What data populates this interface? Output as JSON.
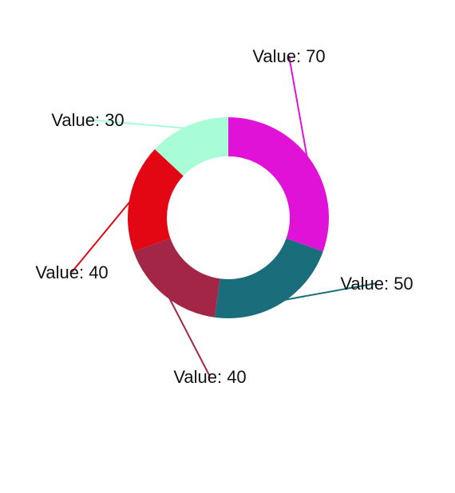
{
  "chart_data": {
    "type": "pie",
    "donut": true,
    "title": "",
    "label_prefix": "Value: ",
    "slices": [
      {
        "value": 70,
        "label": "Value: 70",
        "color": "#e012d8"
      },
      {
        "value": 50,
        "label": "Value: 50",
        "color": "#1a6e7c"
      },
      {
        "value": 40,
        "label": "Value: 40",
        "color": "#a32646"
      },
      {
        "value": 40,
        "label": "Value: 40",
        "color": "#e20712"
      },
      {
        "value": 30,
        "label": "Value: 30",
        "color": "#a8fcd6"
      }
    ]
  }
}
